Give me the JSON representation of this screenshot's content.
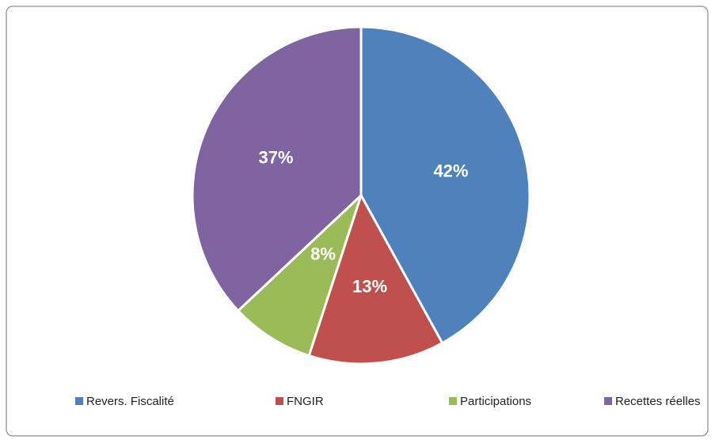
{
  "chart_data": {
    "type": "pie",
    "categories": [
      "Revers. Fiscalité",
      "FNGIR",
      "Participations",
      "Recettes réelles"
    ],
    "values": [
      42,
      13,
      8,
      37
    ],
    "value_labels": [
      "42%",
      "13%",
      "8%",
      "37%"
    ],
    "colors": [
      "#4f81bd",
      "#c0504d",
      "#9bbb59",
      "#8064a2"
    ],
    "legend": "bottom"
  }
}
